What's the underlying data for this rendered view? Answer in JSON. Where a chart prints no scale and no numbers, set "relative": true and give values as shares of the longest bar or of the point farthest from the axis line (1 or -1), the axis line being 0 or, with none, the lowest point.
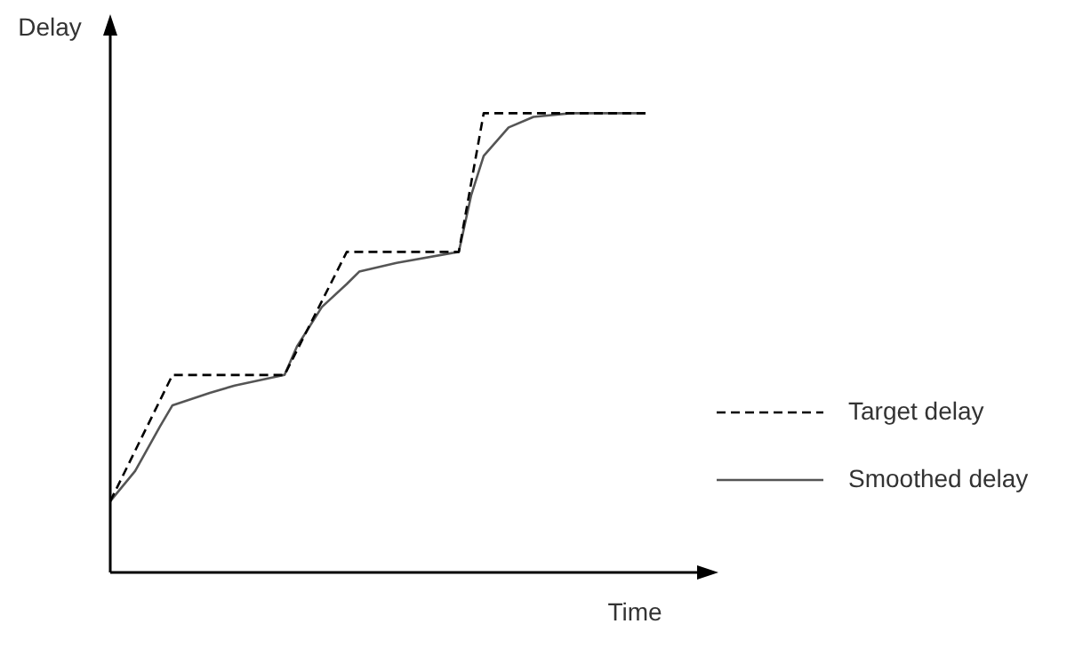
{
  "chart_data": {
    "type": "line",
    "relative": true,
    "xlabel": "Time",
    "ylabel": "Delay",
    "legend": "right",
    "marker": "none",
    "categories": [
      null,
      null,
      null,
      null,
      null,
      null,
      null,
      null,
      null,
      null,
      null,
      null,
      null,
      null,
      null,
      null,
      null,
      null,
      null,
      null,
      null,
      null,
      null,
      null,
      null,
      null,
      null,
      null,
      null,
      null,
      null,
      null,
      null,
      null,
      null,
      null,
      null,
      null,
      null,
      null,
      null,
      null,
      null,
      null
    ],
    "series": [
      {
        "name": "Target delay",
        "color": "#000000",
        "line_style": "dashed",
        "values": [
          0.155,
          null,
          null,
          null,
          null,
          0.43,
          null,
          null,
          null,
          null,
          null,
          null,
          null,
          null,
          0.43,
          null,
          null,
          null,
          null,
          0.698,
          null,
          null,
          null,
          null,
          null,
          null,
          null,
          null,
          0.698,
          null,
          1,
          null,
          null,
          null,
          null,
          null,
          null,
          null,
          null,
          null,
          null,
          null,
          null,
          1
        ]
      },
      {
        "name": "Smoothed delay",
        "color": "#555555",
        "line_style": "solid",
        "values": [
          0.155,
          null,
          0.221,
          null,
          0.318,
          0.364,
          null,
          null,
          0.391,
          null,
          0.407,
          null,
          null,
          null,
          0.43,
          0.492,
          null,
          0.578,
          null,
          0.628,
          0.655,
          null,
          null,
          0.674,
          null,
          null,
          null,
          null,
          0.698,
          0.822,
          0.907,
          null,
          0.969,
          null,
          0.992,
          null,
          null,
          1,
          null,
          null,
          null,
          null,
          null,
          1
        ]
      }
    ]
  }
}
